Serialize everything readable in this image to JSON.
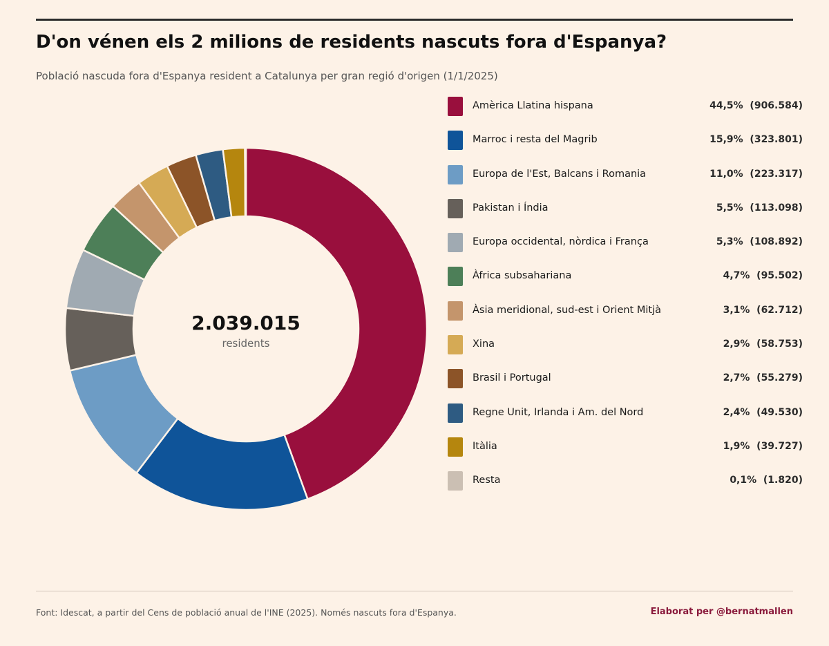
{
  "title": "D'on vénen els 2 milions de residents nascuts fora d'Espanya?",
  "subtitle": "Població nascuda fora d'Espanya resident a Catalunya per gran regió d'origen (1/1/2025)",
  "center": {
    "total": "2.039.015",
    "unit": "residents"
  },
  "footer": {
    "source": "Font: Idescat, a partir del Cens de població anual de l'INE (2025). Només nascuts fora d'Espanya.",
    "credit": "Elaborat per @bernatmallen"
  },
  "chart_data": {
    "type": "pie",
    "donut": true,
    "start": "top",
    "direction": "clockwise",
    "legend_position": "right",
    "categories": [
      "Amèrica Llatina hispana",
      "Marroc i resta del Magrib",
      "Europa de l'Est, Balcans i Romania",
      "Pakistan i Índia",
      "Europa occidental, nòrdica i França",
      "Àfrica subsahariana",
      "Àsia meridional, sud-est i Orient Mitjà",
      "Xina",
      "Brasil i Portugal",
      "Regne Unit, Irlanda i Am. del Nord",
      "Itàlia",
      "Resta"
    ],
    "values": [
      906584,
      323801,
      223317,
      113098,
      108892,
      95502,
      62712,
      58753,
      55279,
      49530,
      39727,
      1820
    ],
    "value_labels": [
      "906.584",
      "323.801",
      "223.317",
      "113.098",
      "108.892",
      "95.502",
      "62.712",
      "58.753",
      "55.279",
      "49.530",
      "39.727",
      "1.820"
    ],
    "percent_labels": [
      "44,5%",
      "15,9%",
      "11,0%",
      "5,5%",
      "5,3%",
      "4,7%",
      "3,1%",
      "2,9%",
      "2,7%",
      "2,4%",
      "1,9%",
      "0,1%"
    ],
    "colors": [
      "#990f3d",
      "#0f5499",
      "#6d9cc5",
      "#66605a",
      "#a0aab2",
      "#4d7f58",
      "#c4956c",
      "#d5aa55",
      "#8c5428",
      "#2e5b82",
      "#b5860e",
      "#cbbfb3"
    ]
  }
}
